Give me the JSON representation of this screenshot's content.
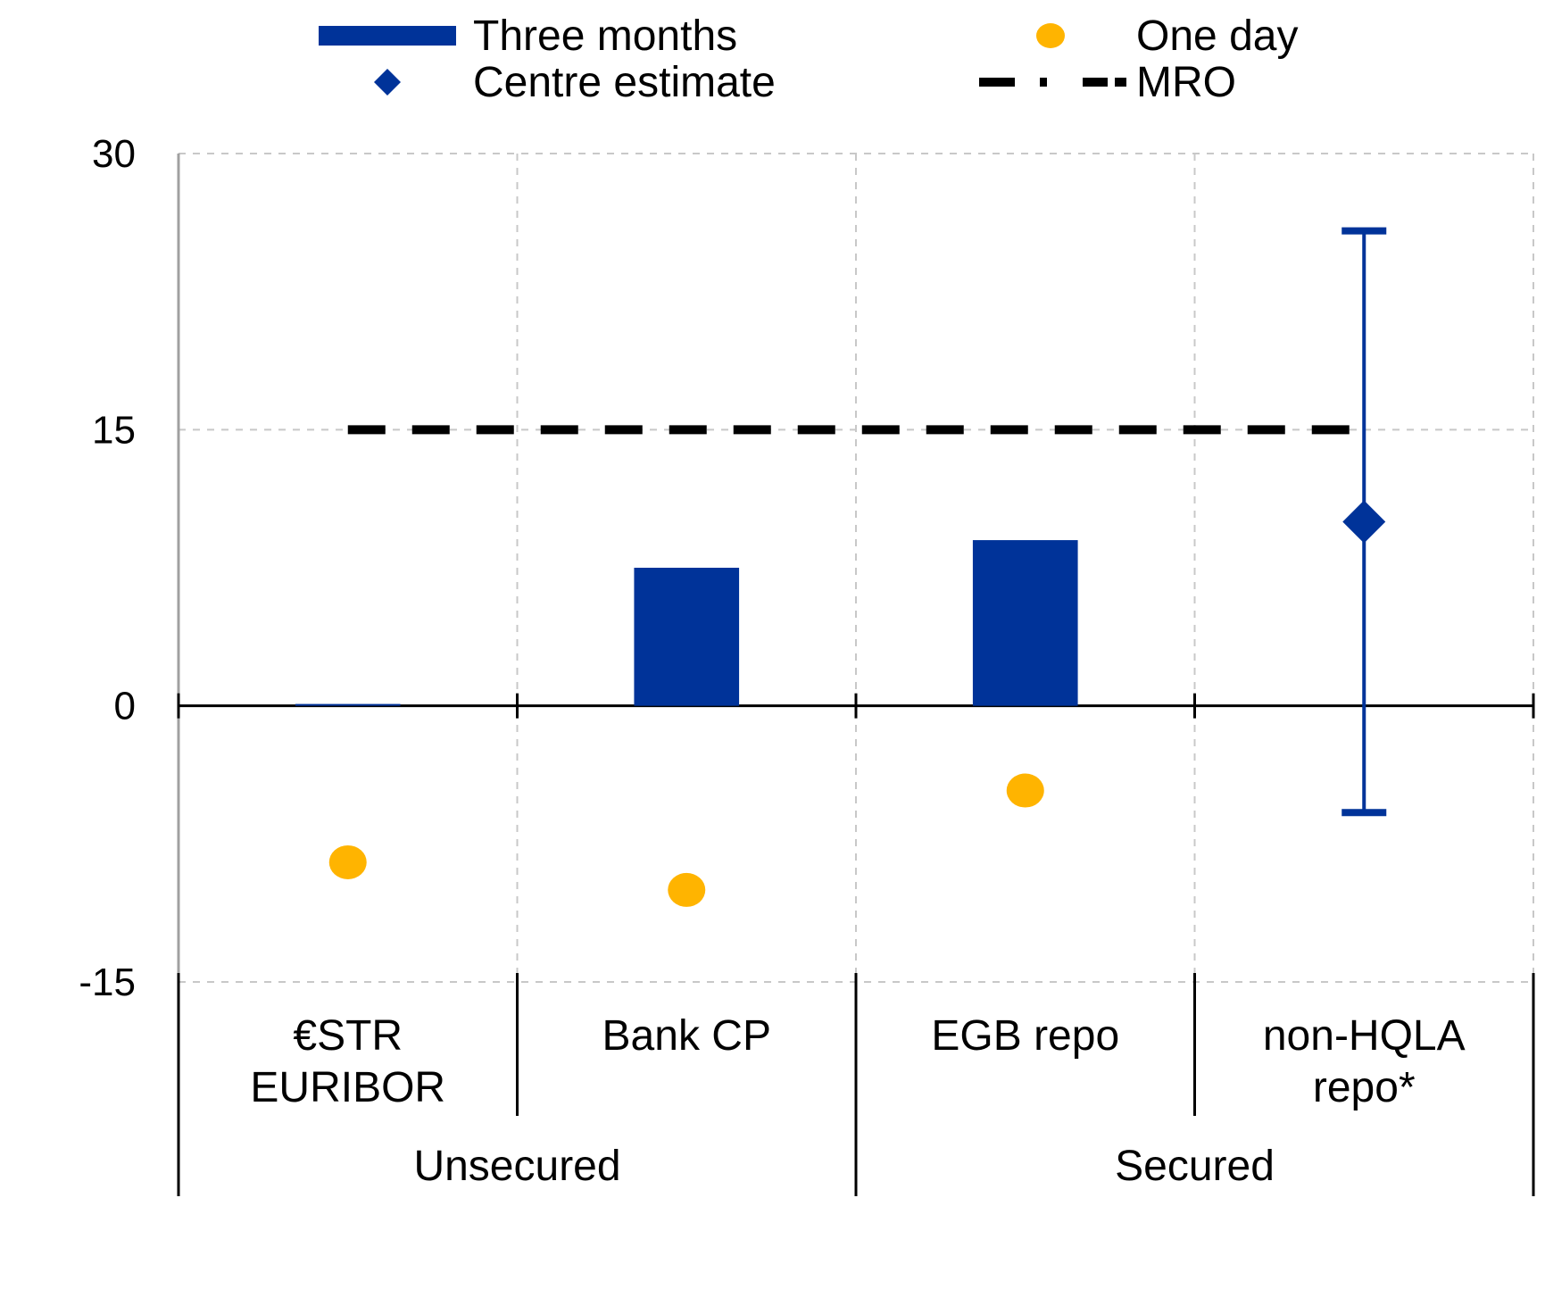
{
  "chart_data": {
    "type": "bar",
    "categories": [
      [
        "€STR",
        "EURIBOR"
      ],
      [
        "Bank CP"
      ],
      [
        "EGB repo"
      ],
      [
        "non-HQLA",
        "repo*"
      ]
    ],
    "groups": [
      {
        "label": "Unsecured",
        "span": [
          0,
          1
        ]
      },
      {
        "label": "Secured",
        "span": [
          2,
          3
        ]
      }
    ],
    "ylim": [
      -15,
      30
    ],
    "yticks": [
      "30",
      "15",
      "0",
      "-15"
    ],
    "ytick_values": [
      30,
      15,
      0,
      -15
    ],
    "grid": true,
    "legend_position": "top",
    "series": [
      {
        "name": "Three months",
        "kind": "bar",
        "color": "#003399",
        "values": [
          0.1,
          7.5,
          9.0,
          null
        ]
      },
      {
        "name": "One day",
        "kind": "dot",
        "color": "#FFB400",
        "values": [
          -8.5,
          -10.0,
          -4.6,
          null
        ]
      },
      {
        "name": "Centre estimate",
        "kind": "diamond",
        "color": "#003399",
        "values": [
          null,
          null,
          null,
          10.0
        ],
        "error_low": [
          null,
          null,
          null,
          -5.8
        ],
        "error_high": [
          null,
          null,
          null,
          25.8
        ]
      },
      {
        "name": "MRO",
        "kind": "dashed-line",
        "color": "#000000",
        "value": 15,
        "x_from": 0,
        "x_to": 3
      }
    ]
  }
}
